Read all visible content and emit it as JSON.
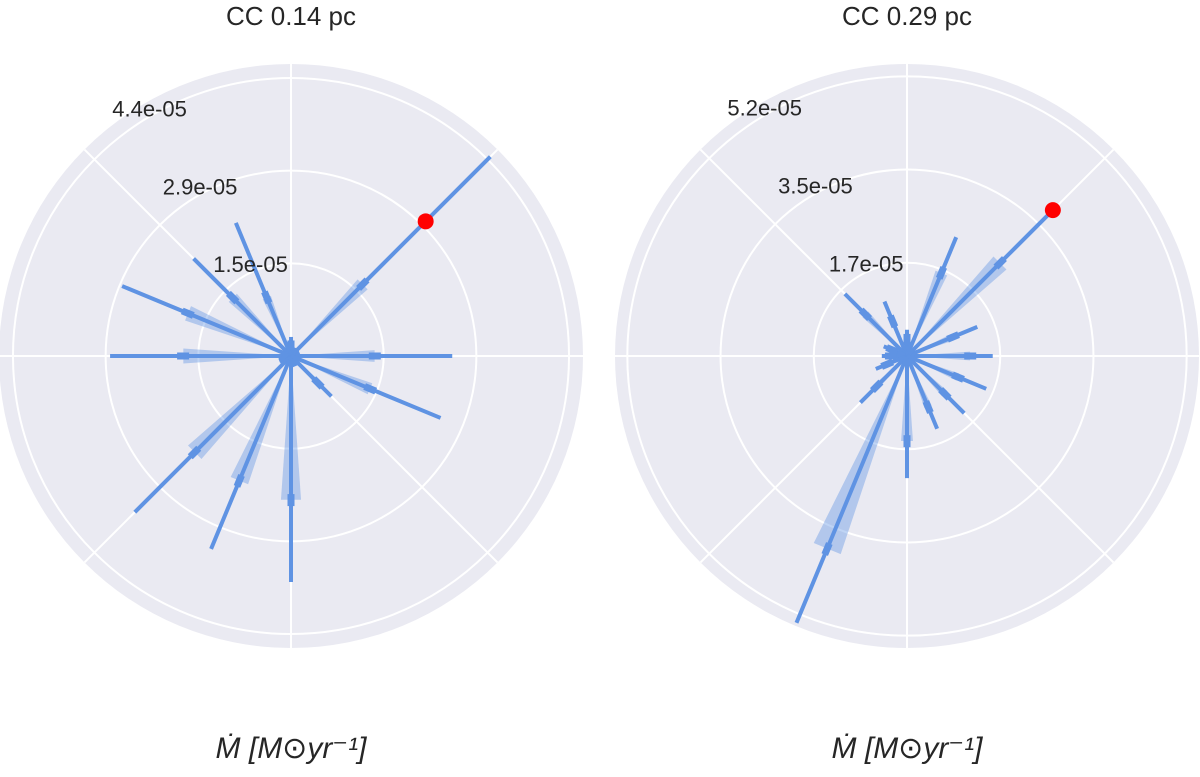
{
  "chart_data": [
    {
      "type": "polar",
      "title": "CC 0.14 pc",
      "xlabel": "Ṁ [M⊙yr⁻¹]",
      "theta": [
        0,
        22.5,
        45,
        67.5,
        90,
        112.5,
        135,
        157.5,
        180,
        202.5,
        225,
        247.5,
        270,
        292.5,
        315,
        337.5
      ],
      "values": [
        2.54e-05,
        1e-06,
        4.44e-05,
        1e-06,
        3e-06,
        2.27e-05,
        2.17e-05,
        2.88e-05,
        2.85e-05,
        2e-06,
        3.48e-05,
        3.29e-05,
        3.56e-05,
        1.5e-06,
        9e-06,
        2.55e-05
      ],
      "medians": [
        1.32e-05,
        5e-07,
        1.6e-05,
        5e-07,
        1.5e-06,
        1e-05,
        1.3e-05,
        1.76e-05,
        1.7e-05,
        1e-06,
        2.15e-05,
        2.13e-05,
        2.27e-05,
        8e-07,
        6e-06,
        1.35e-05
      ],
      "color": "#5f93e3",
      "highlight": {
        "theta": 45,
        "value": 3e-05,
        "color": "#ff0000"
      },
      "ylim": [
        0,
        4.6e-05
      ],
      "yticks": [
        {
          "value": 1.46e-05,
          "label": "1.5e-05"
        },
        {
          "value": 2.92e-05,
          "label": "2.9e-05"
        },
        {
          "value": 4.38e-05,
          "label": "4.4e-05"
        }
      ],
      "thetaticks": [
        0,
        45,
        90,
        135,
        180,
        225,
        270,
        315
      ],
      "grid": true
    },
    {
      "type": "polar",
      "title": "CC 0.29 pc",
      "xlabel": "Ṁ [M⊙yr⁻¹]",
      "theta": [
        0,
        22.5,
        45,
        67.5,
        90,
        112.5,
        135,
        157.5,
        180,
        202.5,
        225,
        247.5,
        270,
        292.5,
        315,
        337.5
      ],
      "values": [
        1.6e-05,
        1.42e-05,
        3.73e-05,
        2.4e-05,
        4.9e-06,
        1.1e-05,
        1.64e-05,
        4.7e-06,
        4.7e-06,
        6.3e-06,
        1.23e-05,
        5.39e-05,
        2.28e-05,
        1.47e-05,
        1.51e-05,
        1.6e-05
      ],
      "medians": [
        1.18e-05,
        9.3e-06,
        2.46e-05,
        1.68e-05,
        3e-06,
        7e-06,
        1.1e-05,
        3e-06,
        3e-06,
        4e-06,
        8e-06,
        3.9e-05,
        1.59e-05,
        1.03e-05,
        1e-05,
        1.03e-05
      ],
      "color": "#5f93e3",
      "highlight": {
        "theta": 45,
        "value": 3.85e-05,
        "color": "#ff0000"
      },
      "ylim": [
        0,
        5.45e-05
      ],
      "yticks": [
        {
          "value": 1.74e-05,
          "label": "1.7e-05"
        },
        {
          "value": 3.48e-05,
          "label": "3.5e-05"
        },
        {
          "value": 5.22e-05,
          "label": "5.2e-05"
        }
      ],
      "thetaticks": [
        0,
        45,
        90,
        135,
        180,
        225,
        270,
        315
      ],
      "grid": true
    }
  ]
}
